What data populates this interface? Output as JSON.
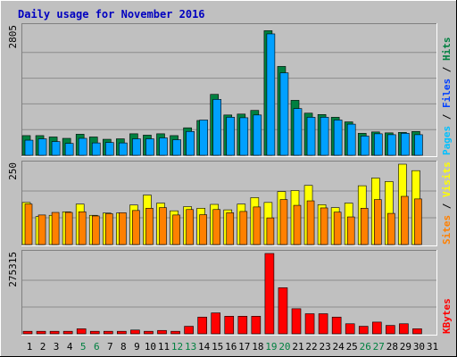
{
  "title": "Daily usage for November 2016",
  "colors": {
    "background": "#c0c0c0",
    "panel": "#c0c0c0",
    "hits": "#008040",
    "files": "#00a0ff",
    "visits": "#ffff00",
    "sites": "#ff8000",
    "kbytes": "#ff0000",
    "title_text": "#0000c0",
    "weekend_label": "#008040",
    "grid": "#808080"
  },
  "chart_data": [
    {
      "type": "bar",
      "name": "hits-files-pages",
      "legend": [
        "Pages",
        "Files",
        "Hits"
      ],
      "legend_colors": [
        "#00c0ff",
        "#0040ff",
        "#008040"
      ],
      "scale_label": "2805",
      "ylim": [
        0,
        2805
      ],
      "categories": [
        "1",
        "2",
        "3",
        "4",
        "5",
        "6",
        "7",
        "8",
        "9",
        "10",
        "11",
        "12",
        "13",
        "14",
        "15",
        "16",
        "17",
        "18",
        "19",
        "20",
        "21",
        "22",
        "23",
        "24",
        "25",
        "26",
        "27",
        "28",
        "29",
        "30",
        "31"
      ],
      "weekend_days": [
        "5",
        "6",
        "12",
        "13",
        "19",
        "20",
        "26",
        "27"
      ],
      "series": [
        {
          "name": "Hits",
          "values": [
            430,
            430,
            400,
            370,
            460,
            400,
            350,
            360,
            470,
            440,
            470,
            430,
            600,
            760,
            1330,
            880,
            900,
            980,
            2720,
            1940,
            1200,
            920,
            890,
            830,
            730,
            480,
            510,
            490,
            500,
            520,
            0
          ]
        },
        {
          "name": "Files",
          "values": [
            330,
            360,
            300,
            260,
            370,
            270,
            280,
            270,
            360,
            360,
            380,
            340,
            520,
            770,
            1220,
            830,
            820,
            880,
            2650,
            1800,
            1020,
            830,
            830,
            770,
            680,
            420,
            470,
            450,
            480,
            450,
            0
          ]
        }
      ]
    },
    {
      "type": "bar",
      "name": "visits-sites",
      "legend": [
        "Sites",
        "Visits"
      ],
      "legend_colors": [
        "#ff8000",
        "#ffff00"
      ],
      "scale_label": "250",
      "ylim": [
        0,
        250
      ],
      "categories": [
        "1",
        "2",
        "3",
        "4",
        "5",
        "6",
        "7",
        "8",
        "9",
        "10",
        "11",
        "12",
        "13",
        "14",
        "15",
        "16",
        "17",
        "18",
        "19",
        "20",
        "21",
        "22",
        "23",
        "24",
        "25",
        "26",
        "27",
        "28",
        "29",
        "30",
        "31"
      ],
      "series": [
        {
          "name": "Visits",
          "values": [
            131,
            87,
            91,
            102,
            126,
            91,
            98,
            98,
            123,
            154,
            129,
            105,
            118,
            113,
            125,
            108,
            126,
            146,
            131,
            165,
            168,
            184,
            124,
            115,
            129,
            183,
            207,
            196,
            250,
            230,
            0
          ]
        },
        {
          "name": "Sites",
          "values": [
            126,
            92,
            100,
            100,
            102,
            89,
            96,
            99,
            106,
            113,
            115,
            92,
            109,
            93,
            109,
            99,
            103,
            117,
            83,
            140,
            122,
            136,
            114,
            101,
            86,
            113,
            140,
            97,
            150,
            142,
            0
          ]
        }
      ]
    },
    {
      "type": "bar",
      "name": "kbytes",
      "legend": [
        "KBytes"
      ],
      "legend_colors": [
        "#ff0000"
      ],
      "scale_label": "275315",
      "ylim": [
        0,
        275315
      ],
      "categories": [
        "1",
        "2",
        "3",
        "4",
        "5",
        "6",
        "7",
        "8",
        "9",
        "10",
        "11",
        "12",
        "13",
        "14",
        "15",
        "16",
        "17",
        "18",
        "19",
        "20",
        "21",
        "22",
        "23",
        "24",
        "25",
        "26",
        "27",
        "28",
        "29",
        "30",
        "31"
      ],
      "series": [
        {
          "name": "KBytes",
          "values": [
            8600,
            8600,
            8600,
            8600,
            17200,
            8600,
            8600,
            8600,
            12900,
            8600,
            11500,
            8600,
            25800,
            57300,
            71700,
            60200,
            60200,
            60200,
            275315,
            157800,
            86000,
            68800,
            68800,
            57300,
            34400,
            25800,
            40100,
            28700,
            34400,
            17200,
            0
          ]
        }
      ]
    }
  ]
}
